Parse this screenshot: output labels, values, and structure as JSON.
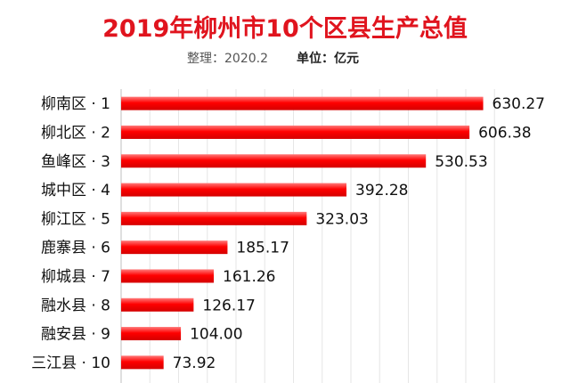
{
  "header": {
    "title": "2019年柳州市10个区县生产总值",
    "note": "整理：2020.2",
    "unit_label": "单位：亿元"
  },
  "colors": {
    "title": "#e0141e",
    "bar": "#ff0000",
    "grid": "#e6e6e6"
  },
  "chart_data": {
    "type": "bar",
    "orientation": "horizontal",
    "title": "2019年柳州市10个区县生产总值",
    "unit": "亿元",
    "grid": true,
    "xlim": [
      0,
      660
    ],
    "categories": [
      "柳南区 · 1",
      "柳北区 · 2",
      "鱼峰区 · 3",
      "城中区 · 4",
      "柳江区 · 5",
      "鹿寨县 · 6",
      "柳城县 · 7",
      "融水县 · 8",
      "融安县 · 9",
      "三江县 · 10"
    ],
    "values": [
      630.27,
      606.38,
      530.53,
      392.28,
      323.03,
      185.17,
      161.26,
      126.17,
      104.0,
      73.92
    ],
    "value_labels": [
      "630.27",
      "606.38",
      "530.53",
      "392.28",
      "323.03",
      "185.17",
      "161.26",
      "126.17",
      "104.00",
      "73.92"
    ]
  }
}
